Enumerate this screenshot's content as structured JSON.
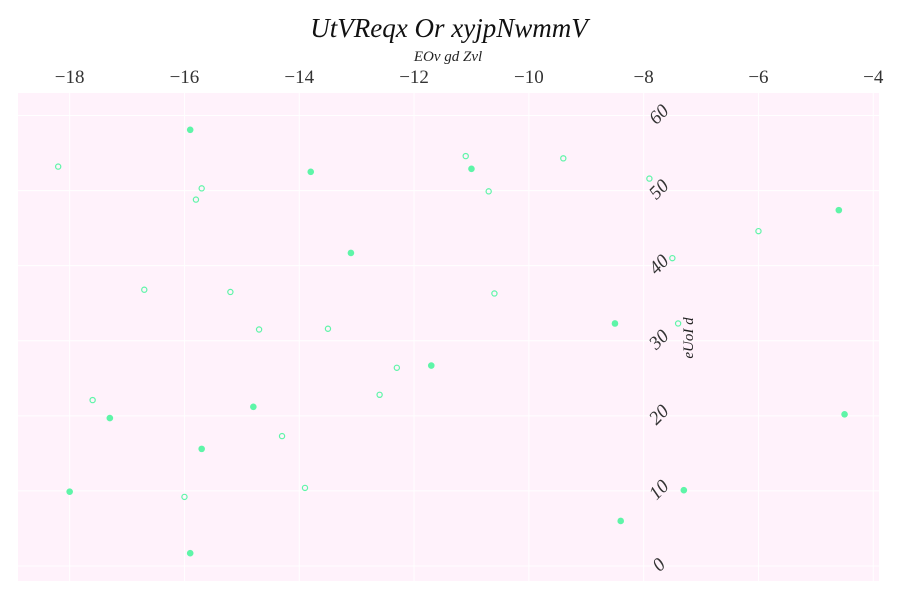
{
  "chart_data": {
    "type": "scatter",
    "title": "UtVReqx Or xyjpNwmmV",
    "xlabel": "EOv gd Zvl",
    "ylabel": "eUoI d",
    "xlim": [
      -18.9,
      -3.9
    ],
    "ylim": [
      -2,
      63
    ],
    "x_ticks": [
      "−18",
      "−16",
      "−14",
      "−12",
      "−10",
      "−8",
      "−6",
      "−4"
    ],
    "y_ticks": [
      "0",
      "10",
      "20",
      "30",
      "40",
      "50",
      "60"
    ],
    "x_tick_values": [
      -18,
      -16,
      -14,
      -12,
      -10,
      -8,
      -6,
      -4
    ],
    "y_tick_values": [
      0,
      10,
      20,
      30,
      40,
      50,
      60
    ],
    "grid": true,
    "colors": {
      "marker": "#5ef5a8",
      "plot_background": "#fff2fb",
      "grid": "#ffffff"
    },
    "series": [
      {
        "marker": "filled",
        "points": [
          {
            "x": -15.9,
            "y": 58.1
          },
          {
            "x": -13.8,
            "y": 52.5
          },
          {
            "x": -11.0,
            "y": 52.9
          },
          {
            "x": -13.1,
            "y": 41.7
          },
          {
            "x": -4.6,
            "y": 47.4
          },
          {
            "x": -8.5,
            "y": 32.3
          },
          {
            "x": -11.7,
            "y": 26.7
          },
          {
            "x": -14.8,
            "y": 21.2
          },
          {
            "x": -17.3,
            "y": 19.7
          },
          {
            "x": -15.7,
            "y": 15.6
          },
          {
            "x": -4.5,
            "y": 20.2
          },
          {
            "x": -18.0,
            "y": 9.9
          },
          {
            "x": -7.3,
            "y": 10.1
          },
          {
            "x": -8.4,
            "y": 6.0
          },
          {
            "x": -15.9,
            "y": 1.7
          }
        ]
      },
      {
        "marker": "hollow",
        "points": [
          {
            "x": -18.2,
            "y": 53.2
          },
          {
            "x": -15.7,
            "y": 50.3
          },
          {
            "x": -15.8,
            "y": 48.8
          },
          {
            "x": -11.1,
            "y": 54.6
          },
          {
            "x": -9.4,
            "y": 54.3
          },
          {
            "x": -10.7,
            "y": 49.9
          },
          {
            "x": -7.9,
            "y": 51.6
          },
          {
            "x": -6.0,
            "y": 44.6
          },
          {
            "x": -7.5,
            "y": 41.0
          },
          {
            "x": -16.7,
            "y": 36.8
          },
          {
            "x": -15.2,
            "y": 36.5
          },
          {
            "x": -10.6,
            "y": 36.3
          },
          {
            "x": -14.7,
            "y": 31.5
          },
          {
            "x": -13.5,
            "y": 31.6
          },
          {
            "x": -7.4,
            "y": 32.3
          },
          {
            "x": -12.3,
            "y": 26.4
          },
          {
            "x": -12.6,
            "y": 22.8
          },
          {
            "x": -17.6,
            "y": 22.1
          },
          {
            "x": -14.3,
            "y": 17.3
          },
          {
            "x": -16.0,
            "y": 9.2
          },
          {
            "x": -13.9,
            "y": 10.4
          }
        ]
      }
    ]
  }
}
